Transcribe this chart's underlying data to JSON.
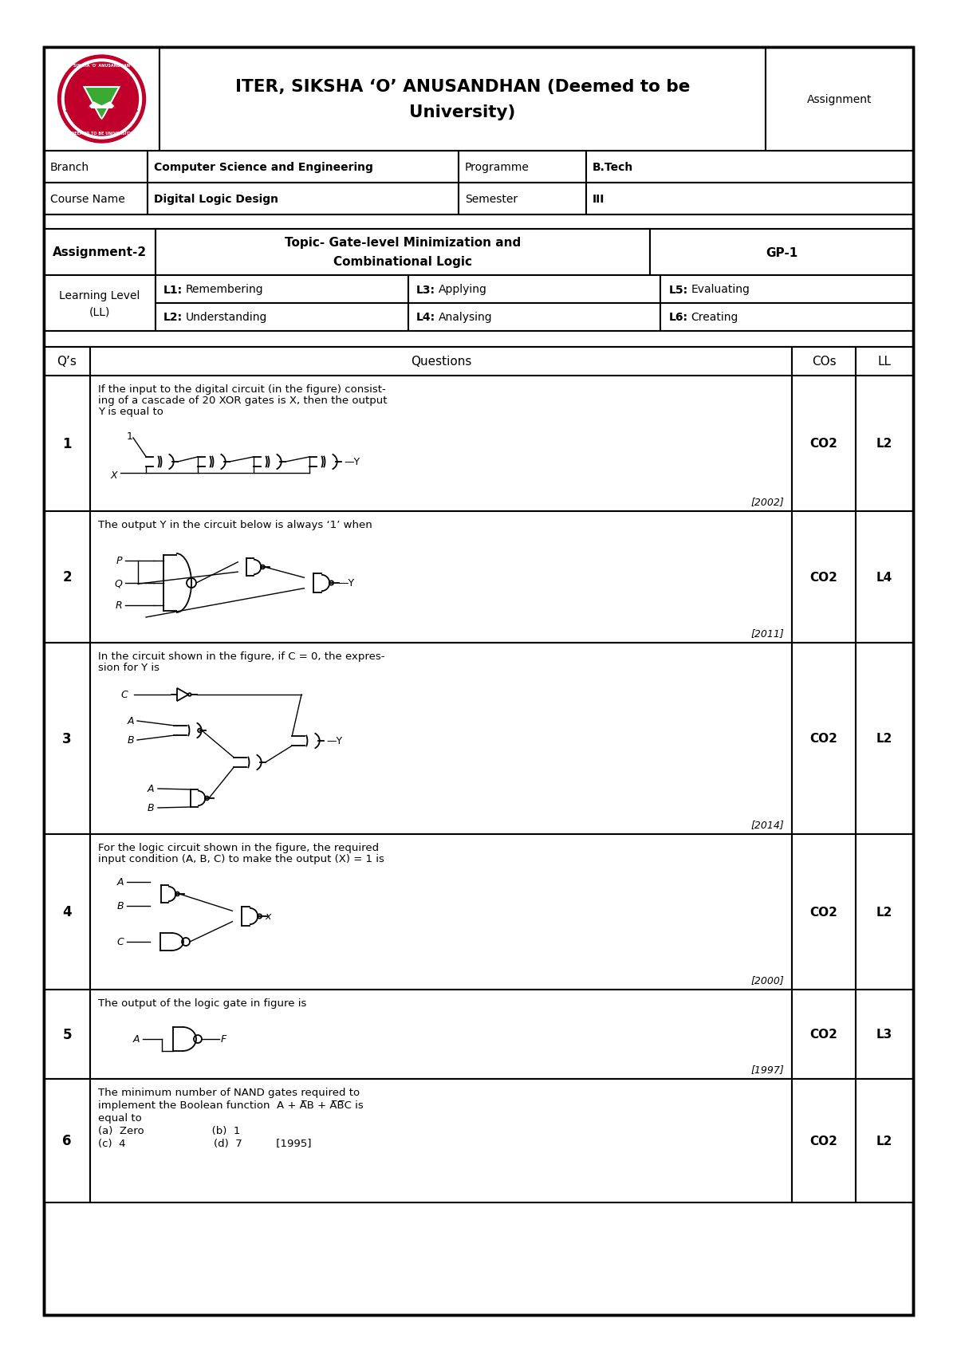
{
  "title_line1": "ITER, SIKSHA ‘O’ ANUSANDHAN (Deemed to be",
  "title_line2": "University)",
  "assignment_label": "Assignment",
  "branch_label": "Branch",
  "branch_value": "Computer Science and Engineering",
  "programme_label": "Programme",
  "programme_value": "B.Tech",
  "course_label": "Course Name",
  "course_value": "Digital Logic Design",
  "semester_label": "Semester",
  "semester_value": "III",
  "assignment2_label": "Assignment-2",
  "topic_line1": "Topic- Gate-level Minimization and",
  "topic_line2": "Combinational Logic",
  "gp_value": "GP-1",
  "ll_label": "Learning Level\n(LL)",
  "ll_row1": [
    "L1: Remembering",
    "L3: Applying",
    "L5: Evaluating"
  ],
  "ll_row2": [
    "L2: Understanding",
    "L4: Analysing",
    "L6: Creating"
  ],
  "qs_header": "Q’s",
  "questions_header": "Questions",
  "cos_header": "COs",
  "ll_header": "LL",
  "q1_text1": "If the input to the digital circuit (in the figure) consist-",
  "q1_text2": "ing of a cascade of 20 XOR gates is X, then the output",
  "q1_text3": "Y is equal to",
  "q1_year": "[2002]",
  "q1_co": "CO2",
  "q1_ll": "L2",
  "q2_text1": "The output Y in the circuit below is always ‘1’ when",
  "q2_year": "[2011]",
  "q2_co": "CO2",
  "q2_ll": "L4",
  "q3_text1": "In the circuit shown in the figure, if C = 0, the expres-",
  "q3_text2": "sion for Y is",
  "q3_year": "[2014]",
  "q3_co": "CO2",
  "q3_ll": "L2",
  "q4_text1": "For the logic circuit shown in the figure, the required",
  "q4_text2": "input condition (A, B, C) to make the output (X) = 1 is",
  "q4_year": "[2000]",
  "q4_co": "CO2",
  "q4_ll": "L2",
  "q5_text1": "The output of the logic gate in figure is",
  "q5_year": "[1997]",
  "q5_co": "CO2",
  "q5_ll": "L3",
  "q6_text1": "The minimum number of NAND gates required to",
  "q6_text2": "implement the Boolean function  A + A̅B + A̅B̅C is",
  "q6_text3": "equal to",
  "q6_text4": "(a)  Zero                    (b)  1",
  "q6_text5": "(c)  4                          (d)  7          [1995]",
  "q6_co": "CO2",
  "q6_ll": "L2",
  "bg_color": "#ffffff"
}
